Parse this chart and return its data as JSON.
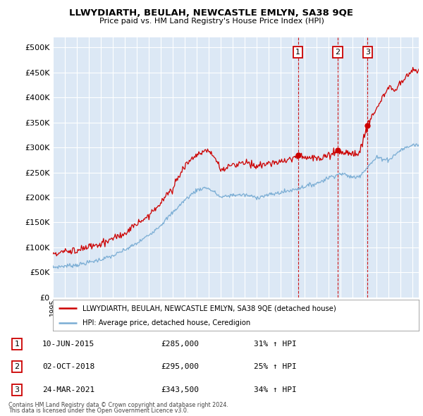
{
  "title1": "LLWYDIARTH, BEULAH, NEWCASTLE EMLYN, SA38 9QE",
  "title2": "Price paid vs. HM Land Registry's House Price Index (HPI)",
  "xlim_start": 1995.0,
  "xlim_end": 2025.5,
  "ylim": [
    0,
    520000
  ],
  "yticks": [
    0,
    50000,
    100000,
    150000,
    200000,
    250000,
    300000,
    350000,
    400000,
    450000,
    500000
  ],
  "ytick_labels": [
    "£0",
    "£50K",
    "£100K",
    "£150K",
    "£200K",
    "£250K",
    "£300K",
    "£350K",
    "£400K",
    "£450K",
    "£500K"
  ],
  "plot_bg_color": "#dce8f5",
  "grid_color": "#ffffff",
  "red_color": "#cc0000",
  "blue_color": "#7aadd4",
  "sale1_date": 2015.44,
  "sale1_price": 285000,
  "sale2_date": 2018.75,
  "sale2_price": 295000,
  "sale3_date": 2021.23,
  "sale3_price": 343500,
  "legend_red_label": "LLWYDIARTH, BEULAH, NEWCASTLE EMLYN, SA38 9QE (detached house)",
  "legend_blue_label": "HPI: Average price, detached house, Ceredigion",
  "table_data": [
    [
      "1",
      "10-JUN-2015",
      "£285,000",
      "31% ↑ HPI"
    ],
    [
      "2",
      "02-OCT-2018",
      "£295,000",
      "25% ↑ HPI"
    ],
    [
      "3",
      "24-MAR-2021",
      "£343,500",
      "34% ↑ HPI"
    ]
  ],
  "footer1": "Contains HM Land Registry data © Crown copyright and database right 2024.",
  "footer2": "This data is licensed under the Open Government Licence v3.0."
}
